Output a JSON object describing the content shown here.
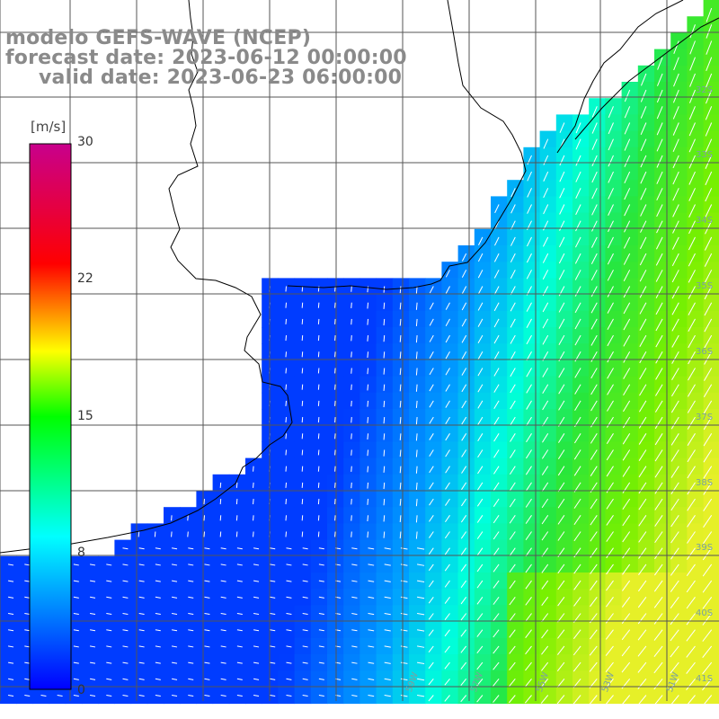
{
  "title": {
    "model": "modelo GEFS-WAVE (NCEP)",
    "forecast": "forecast date: 2023-06-12 00:00:00",
    "valid": "valid date: 2023-06-23 06:00:00"
  },
  "colorbar": {
    "unit": "[m/s]",
    "ticks": [
      "30",
      "22",
      "15",
      "8",
      "0"
    ]
  },
  "latitude_labels": [
    "32S",
    "33S",
    "34S",
    "35S",
    "36S",
    "37S",
    "38S",
    "39S",
    "40S",
    "41S"
  ],
  "longitude_labels": [
    "59W",
    "57W",
    "55W",
    "53W",
    "51W"
  ],
  "colors": {
    "land": "#ffffff",
    "coast": "#000000",
    "grid": "#555555",
    "arrows": "#ffffff",
    "title": "#8a8a8a"
  }
}
